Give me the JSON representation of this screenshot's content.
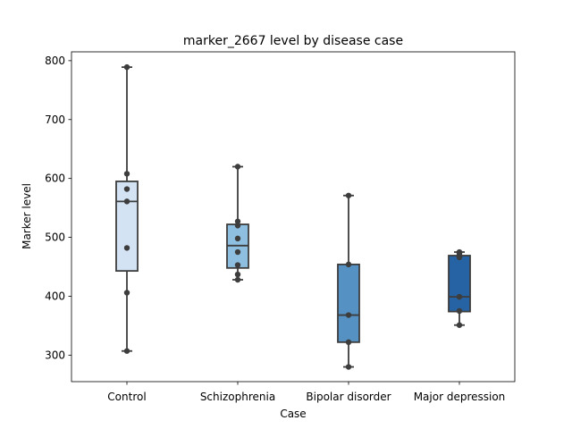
{
  "chart_data": {
    "type": "box",
    "title": "marker_2667 level by disease case",
    "xlabel": "Case",
    "ylabel": "Marker level",
    "categories": [
      "Control",
      "Schizophrenia",
      "Bipolar disorder",
      "Major depression"
    ],
    "ylim": [
      255,
      815
    ],
    "yticks": [
      300,
      400,
      500,
      600,
      700,
      800
    ],
    "colors": [
      "#d4e3f4",
      "#8fbfe0",
      "#5592c3",
      "#2663a5"
    ],
    "boxes": [
      {
        "q1": 443,
        "median": 561,
        "q3": 595,
        "whisker_low": 307,
        "whisker_high": 789
      },
      {
        "q1": 448,
        "median": 486,
        "q3": 522,
        "whisker_low": 428,
        "whisker_high": 620
      },
      {
        "q1": 322,
        "median": 368,
        "q3": 454,
        "whisker_low": 280,
        "whisker_high": 571
      },
      {
        "q1": 374,
        "median": 399,
        "q3": 469,
        "whisker_low": 351,
        "whisker_high": 475
      }
    ],
    "points": [
      [
        789,
        608,
        582,
        561,
        482,
        406,
        307
      ],
      [
        620,
        527,
        520,
        498,
        475,
        453,
        437,
        428
      ],
      [
        571,
        454,
        368,
        322,
        280
      ],
      [
        475,
        472,
        466,
        399,
        375,
        351
      ]
    ]
  }
}
